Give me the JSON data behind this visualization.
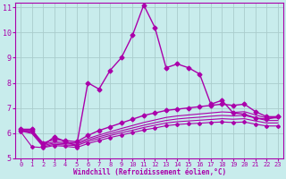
{
  "xlabel": "Windchill (Refroidissement éolien,°C)",
  "bg_color": "#c8ecec",
  "line_color": "#aa00aa",
  "grid_color": "#aacccc",
  "xlim": [
    -0.5,
    23.5
  ],
  "ylim": [
    5,
    11.2
  ],
  "xticks": [
    0,
    1,
    2,
    3,
    4,
    5,
    6,
    7,
    8,
    9,
    10,
    11,
    12,
    13,
    14,
    15,
    16,
    17,
    18,
    19,
    20,
    21,
    22,
    23
  ],
  "yticks": [
    5,
    6,
    7,
    8,
    9,
    10,
    11
  ],
  "lines": [
    {
      "x": [
        0,
        1,
        2,
        3,
        4,
        5,
        6,
        7,
        8,
        9,
        10,
        11,
        12,
        13,
        14,
        15,
        16,
        17,
        18,
        19,
        20,
        21,
        22,
        23
      ],
      "y": [
        6.15,
        6.15,
        5.5,
        5.85,
        5.65,
        5.5,
        8.0,
        7.75,
        8.5,
        9.0,
        9.9,
        11.1,
        10.2,
        8.6,
        8.75,
        8.6,
        8.35,
        7.15,
        7.3,
        6.8,
        6.75,
        6.6,
        6.55,
        6.65
      ],
      "marker": "D",
      "markersize": 2.5,
      "linewidth": 1.0
    },
    {
      "x": [
        0,
        1,
        2,
        3,
        4,
        5,
        6,
        7,
        8,
        9,
        10,
        11,
        12,
        13,
        14,
        15,
        16,
        17,
        18,
        19,
        20,
        21,
        22,
        23
      ],
      "y": [
        6.1,
        6.1,
        5.6,
        5.75,
        5.7,
        5.65,
        5.9,
        6.1,
        6.25,
        6.4,
        6.55,
        6.7,
        6.8,
        6.9,
        6.95,
        7.0,
        7.05,
        7.1,
        7.15,
        7.1,
        7.15,
        6.85,
        6.65,
        6.65
      ],
      "marker": "D",
      "markersize": 2.5,
      "linewidth": 1.0
    },
    {
      "x": [
        0,
        1,
        2,
        3,
        4,
        5,
        6,
        7,
        8,
        9,
        10,
        11,
        12,
        13,
        14,
        15,
        16,
        17,
        18,
        19,
        20,
        21,
        22,
        23
      ],
      "y": [
        6.1,
        6.05,
        5.55,
        5.65,
        5.62,
        5.6,
        5.78,
        5.92,
        6.05,
        6.18,
        6.3,
        6.42,
        6.52,
        6.62,
        6.68,
        6.72,
        6.76,
        6.8,
        6.84,
        6.82,
        6.85,
        6.72,
        6.6,
        6.6
      ],
      "marker": null,
      "markersize": 0,
      "linewidth": 0.8
    },
    {
      "x": [
        0,
        1,
        2,
        3,
        4,
        5,
        6,
        7,
        8,
        9,
        10,
        11,
        12,
        13,
        14,
        15,
        16,
        17,
        18,
        19,
        20,
        21,
        22,
        23
      ],
      "y": [
        6.1,
        6.02,
        5.5,
        5.6,
        5.57,
        5.55,
        5.72,
        5.85,
        5.97,
        6.09,
        6.2,
        6.31,
        6.41,
        6.5,
        6.56,
        6.6,
        6.63,
        6.67,
        6.7,
        6.68,
        6.7,
        6.6,
        6.5,
        6.5
      ],
      "marker": null,
      "markersize": 0,
      "linewidth": 0.8
    },
    {
      "x": [
        0,
        1,
        2,
        3,
        4,
        5,
        6,
        7,
        8,
        9,
        10,
        11,
        12,
        13,
        14,
        15,
        16,
        17,
        18,
        19,
        20,
        21,
        22,
        23
      ],
      "y": [
        6.08,
        5.98,
        5.45,
        5.55,
        5.52,
        5.5,
        5.66,
        5.78,
        5.9,
        6.01,
        6.11,
        6.22,
        6.31,
        6.4,
        6.45,
        6.48,
        6.51,
        6.54,
        6.57,
        6.55,
        6.57,
        6.48,
        6.4,
        6.4
      ],
      "marker": null,
      "markersize": 0,
      "linewidth": 0.8
    },
    {
      "x": [
        0,
        1,
        2,
        3,
        4,
        5,
        6,
        7,
        8,
        9,
        10,
        11,
        12,
        13,
        14,
        15,
        16,
        17,
        18,
        19,
        20,
        21,
        22,
        23
      ],
      "y": [
        6.05,
        5.45,
        5.42,
        5.5,
        5.47,
        5.42,
        5.58,
        5.7,
        5.82,
        5.92,
        6.02,
        6.12,
        6.2,
        6.29,
        6.34,
        6.37,
        6.39,
        6.42,
        6.44,
        6.42,
        6.44,
        6.35,
        6.28,
        6.28
      ],
      "marker": "D",
      "markersize": 2.0,
      "linewidth": 0.8
    }
  ]
}
